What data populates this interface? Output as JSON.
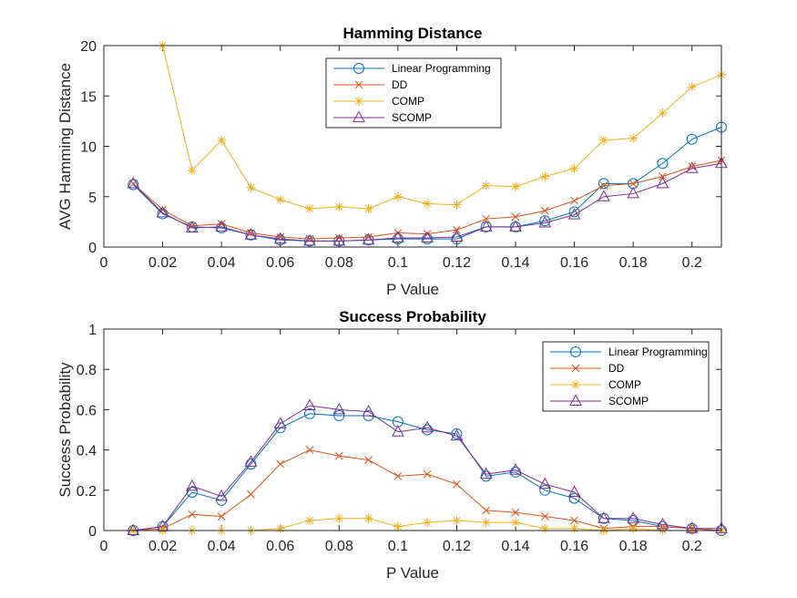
{
  "chart_data": [
    {
      "type": "line",
      "title": "Hamming Distance",
      "xlabel": "P Value",
      "ylabel": "AVG Hamming Distance",
      "xlim": [
        0,
        0.21
      ],
      "ylim": [
        0,
        20
      ],
      "xticks": [
        0,
        0.02,
        0.04,
        0.06,
        0.08,
        0.1,
        0.12,
        0.14,
        0.16,
        0.18,
        0.2
      ],
      "xtick_labels": [
        "0",
        "0.02",
        "0.04",
        "0.06",
        "0.08",
        "0.1",
        "0.12",
        "0.14",
        "0.16",
        "0.18",
        "0.2"
      ],
      "yticks": [
        0,
        5,
        10,
        15,
        20
      ],
      "ytick_labels": [
        "0",
        "5",
        "10",
        "15",
        "20"
      ],
      "legend_position": "top-center",
      "x": [
        0.01,
        0.02,
        0.03,
        0.04,
        0.05,
        0.06,
        0.07,
        0.08,
        0.09,
        0.1,
        0.11,
        0.12,
        0.13,
        0.14,
        0.15,
        0.16,
        0.17,
        0.18,
        0.19,
        0.2,
        0.21
      ],
      "series": [
        {
          "name": "Linear Programming",
          "marker": "circle",
          "color": "#0072BD",
          "values": [
            6.2,
            3.3,
            2.0,
            1.9,
            1.2,
            0.7,
            0.6,
            0.6,
            0.7,
            0.8,
            0.8,
            0.8,
            2.0,
            2.0,
            2.6,
            3.5,
            6.3,
            6.3,
            8.3,
            10.7,
            11.9
          ]
        },
        {
          "name": "DD",
          "marker": "x",
          "color": "#D95319",
          "values": [
            6.3,
            3.7,
            2.1,
            2.3,
            1.4,
            1.0,
            0.8,
            0.9,
            1.0,
            1.4,
            1.3,
            1.7,
            2.8,
            3.0,
            3.6,
            4.6,
            6.1,
            6.3,
            7.0,
            8.0,
            8.6
          ]
        },
        {
          "name": "COMP",
          "marker": "star",
          "color": "#EDB120",
          "values": [
            null,
            20.0,
            7.6,
            10.6,
            5.9,
            4.7,
            3.8,
            4.0,
            3.8,
            5.0,
            4.3,
            4.2,
            6.1,
            6.0,
            7.0,
            7.8,
            10.6,
            10.8,
            13.3,
            15.9,
            17.1
          ]
        },
        {
          "name": "SCOMP",
          "marker": "triangle",
          "color": "#7E2F8E",
          "values": [
            6.3,
            3.4,
            1.9,
            2.0,
            1.2,
            0.8,
            0.6,
            0.6,
            0.7,
            0.9,
            0.9,
            1.0,
            2.0,
            2.0,
            2.4,
            3.2,
            5.0,
            5.3,
            6.3,
            7.8,
            8.3
          ]
        }
      ]
    },
    {
      "type": "line",
      "title": "Success Probability",
      "xlabel": "P Value",
      "ylabel": "Success Probability",
      "xlim": [
        0,
        0.21
      ],
      "ylim": [
        0,
        1
      ],
      "xticks": [
        0,
        0.02,
        0.04,
        0.06,
        0.08,
        0.1,
        0.12,
        0.14,
        0.16,
        0.18,
        0.2
      ],
      "xtick_labels": [
        "0",
        "0.02",
        "0.04",
        "0.06",
        "0.08",
        "0.1",
        "0.12",
        "0.14",
        "0.16",
        "0.18",
        "0.2"
      ],
      "yticks": [
        0,
        0.2,
        0.4,
        0.6,
        0.8,
        1
      ],
      "ytick_labels": [
        "0",
        "0.2",
        "0.4",
        "0.6",
        "0.8",
        "1"
      ],
      "legend_position": "top-right",
      "x": [
        0.01,
        0.02,
        0.03,
        0.04,
        0.05,
        0.06,
        0.07,
        0.08,
        0.09,
        0.1,
        0.11,
        0.12,
        0.13,
        0.14,
        0.15,
        0.16,
        0.17,
        0.18,
        0.19,
        0.2,
        0.21
      ],
      "series": [
        {
          "name": "Linear Programming",
          "marker": "circle",
          "color": "#0072BD",
          "values": [
            0.0,
            0.02,
            0.19,
            0.15,
            0.33,
            0.51,
            0.58,
            0.57,
            0.57,
            0.54,
            0.5,
            0.48,
            0.27,
            0.29,
            0.2,
            0.16,
            0.06,
            0.05,
            0.02,
            0.01,
            0.0
          ]
        },
        {
          "name": "DD",
          "marker": "x",
          "color": "#D95319",
          "values": [
            0.0,
            0.01,
            0.08,
            0.07,
            0.18,
            0.33,
            0.4,
            0.37,
            0.35,
            0.27,
            0.28,
            0.23,
            0.1,
            0.09,
            0.07,
            0.05,
            0.01,
            0.02,
            0.02,
            0.01,
            0.0
          ]
        },
        {
          "name": "COMP",
          "marker": "star",
          "color": "#EDB120",
          "values": [
            0.0,
            0.0,
            0.0,
            0.0,
            0.0,
            0.01,
            0.05,
            0.06,
            0.06,
            0.02,
            0.04,
            0.05,
            0.04,
            0.04,
            0.01,
            0.01,
            0.0,
            0.01,
            0.0,
            0.0,
            0.0
          ]
        },
        {
          "name": "SCOMP",
          "marker": "triangle",
          "color": "#7E2F8E",
          "values": [
            0.0,
            0.02,
            0.22,
            0.17,
            0.34,
            0.53,
            0.62,
            0.6,
            0.59,
            0.49,
            0.51,
            0.47,
            0.28,
            0.3,
            0.23,
            0.19,
            0.06,
            0.06,
            0.03,
            0.01,
            0.01
          ]
        }
      ]
    }
  ]
}
